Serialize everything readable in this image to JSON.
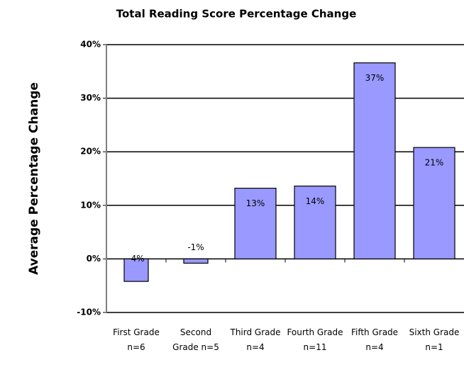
{
  "chart_data": {
    "type": "bar",
    "title": "Total Reading Score Percentage Change",
    "y_label": "Average Percentage Change",
    "categories": [
      "First Grade n=6",
      "Second Grade n=5",
      "Third Grade n=4",
      "Fourth Grade n=11",
      "Fifth Grade n=4",
      "Sixth Grade n=1"
    ],
    "values": [
      -4.2,
      -0.8,
      13.2,
      13.6,
      36.6,
      20.8
    ],
    "value_labels": [
      "-4%",
      "-1%",
      "13%",
      "14%",
      "37%",
      "21%"
    ],
    "color": "#9999ff",
    "ylim": [
      -10,
      40
    ],
    "yticks": [
      {
        "value": -10,
        "label": "-10%"
      },
      {
        "value": 0,
        "label": "0%"
      },
      {
        "value": 10,
        "label": "10%"
      },
      {
        "value": 20,
        "label": "20%"
      },
      {
        "value": 30,
        "label": "30%"
      },
      {
        "value": 40,
        "label": "40%"
      }
    ],
    "grid": true
  }
}
